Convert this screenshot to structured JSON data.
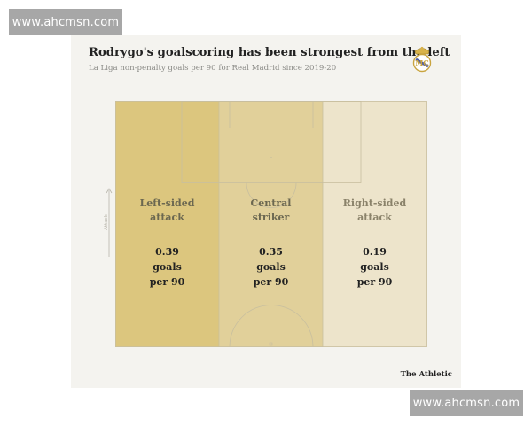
{
  "watermark": {
    "text": "www.ahcmsn.com"
  },
  "chart": {
    "title": "Rodrygo's goalscoring has been strongest from the left",
    "subtitle": "La Liga non-penalty goals per 90 for Real Madrid since 2019-20",
    "attack_label": "Attack",
    "source": "The Athletic"
  },
  "zones": [
    {
      "label": "Left-sided\nattack",
      "value": "0.39\ngoals\nper 90",
      "color": "#dcc67e"
    },
    {
      "label": "Central\nstriker",
      "value": "0.35\ngoals\nper 90",
      "color": "#e1d09a"
    },
    {
      "label": "Right-sided\nattack",
      "value": "0.19\ngoals\nper 90",
      "color": "#ede4cb"
    }
  ],
  "chart_data": {
    "type": "table",
    "categories": [
      "Left-sided attack",
      "Central striker",
      "Right-sided attack"
    ],
    "values": [
      0.39,
      0.35,
      0.19
    ],
    "title": "Rodrygo's goalscoring has been strongest from the left"
  },
  "colors": {
    "label_text": "#6b6750",
    "value_text": "#222222",
    "pitch_line": "#c8bf9f"
  },
  "icons": {
    "crest": "real-madrid-crest-icon",
    "arrow": "arrow-up-icon"
  }
}
